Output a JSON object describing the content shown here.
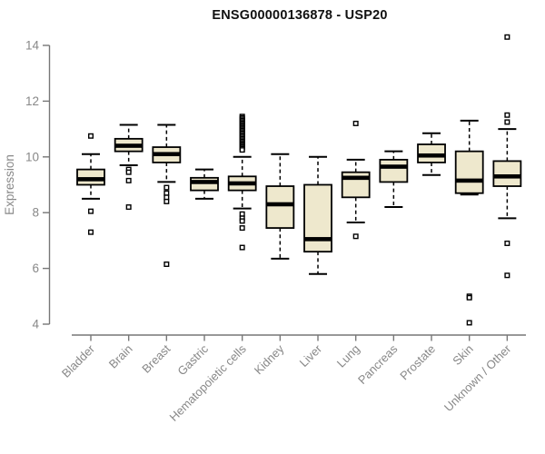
{
  "title": "ENSG00000136878 - USP20",
  "chart_data": {
    "type": "boxplot",
    "title": "ENSG00000136878 - USP20",
    "xlabel": "",
    "ylabel": "Expression",
    "ylim": [
      3.5,
      14.6
    ],
    "yticks": [
      4,
      6,
      8,
      10,
      12,
      14
    ],
    "grid": false,
    "legend": false,
    "categories": [
      "Bladder",
      "Brain",
      "Breast",
      "Gastric",
      "Hematopoietic cells",
      "Kidney",
      "Liver",
      "Lung",
      "Pancreas",
      "Prostate",
      "Skin",
      "Unknown / Other"
    ],
    "series": [
      {
        "name": "Bladder",
        "whisker_low": 8.5,
        "q1": 9.0,
        "median": 9.2,
        "q3": 9.55,
        "whisker_high": 10.1,
        "outliers": [
          10.75,
          8.05,
          7.3
        ]
      },
      {
        "name": "Brain",
        "whisker_low": 9.7,
        "q1": 10.2,
        "median": 10.4,
        "q3": 10.65,
        "whisker_high": 11.15,
        "outliers": [
          9.55,
          9.45,
          9.15,
          8.2
        ]
      },
      {
        "name": "Breast",
        "whisker_low": 9.1,
        "q1": 9.8,
        "median": 10.1,
        "q3": 10.35,
        "whisker_high": 11.15,
        "outliers": [
          8.9,
          8.7,
          8.55,
          8.4,
          6.15
        ]
      },
      {
        "name": "Gastric",
        "whisker_low": 8.5,
        "q1": 8.8,
        "median": 9.1,
        "q3": 9.25,
        "whisker_high": 9.55,
        "outliers": []
      },
      {
        "name": "Hematopoietic cells",
        "whisker_low": 8.15,
        "q1": 8.8,
        "median": 9.05,
        "q3": 9.3,
        "whisker_high": 10.0,
        "outliers": [
          11.45,
          11.4,
          11.35,
          11.3,
          11.25,
          11.2,
          11.15,
          11.1,
          11.05,
          11.0,
          10.95,
          10.9,
          10.85,
          10.8,
          10.75,
          10.7,
          10.65,
          10.6,
          10.55,
          10.5,
          10.45,
          10.4,
          10.35,
          10.3,
          10.25,
          7.95,
          7.8,
          7.7,
          7.45,
          6.75
        ]
      },
      {
        "name": "Kidney",
        "whisker_low": 6.35,
        "q1": 7.45,
        "median": 8.3,
        "q3": 8.95,
        "whisker_high": 10.1,
        "outliers": []
      },
      {
        "name": "Liver",
        "whisker_low": 5.8,
        "q1": 6.6,
        "median": 7.05,
        "q3": 9.0,
        "whisker_high": 10.0,
        "outliers": []
      },
      {
        "name": "Lung",
        "whisker_low": 7.65,
        "q1": 8.55,
        "median": 9.25,
        "q3": 9.45,
        "whisker_high": 9.9,
        "outliers": [
          11.2,
          7.15
        ]
      },
      {
        "name": "Pancreas",
        "whisker_low": 8.2,
        "q1": 9.1,
        "median": 9.65,
        "q3": 9.9,
        "whisker_high": 10.2,
        "outliers": []
      },
      {
        "name": "Prostate",
        "whisker_low": 9.35,
        "q1": 9.8,
        "median": 10.05,
        "q3": 10.45,
        "whisker_high": 10.85,
        "outliers": []
      },
      {
        "name": "Skin",
        "whisker_low": 8.65,
        "q1": 8.7,
        "median": 9.15,
        "q3": 10.2,
        "whisker_high": 11.3,
        "outliers": [
          5.0,
          4.95,
          4.05
        ]
      },
      {
        "name": "Unknown / Other",
        "whisker_low": 7.8,
        "q1": 8.95,
        "median": 9.3,
        "q3": 9.85,
        "whisker_high": 11.0,
        "outliers": [
          14.3,
          11.5,
          11.25,
          6.9,
          5.75
        ]
      }
    ],
    "colors": {
      "box_fill": "#EEE8CD",
      "box_border": "#000000",
      "median": "#000000",
      "whisker": "#000000",
      "outlier": "#000000",
      "axis": "#777777",
      "tick_label": "#888888",
      "title": "#111111",
      "background": "#ffffff"
    }
  }
}
